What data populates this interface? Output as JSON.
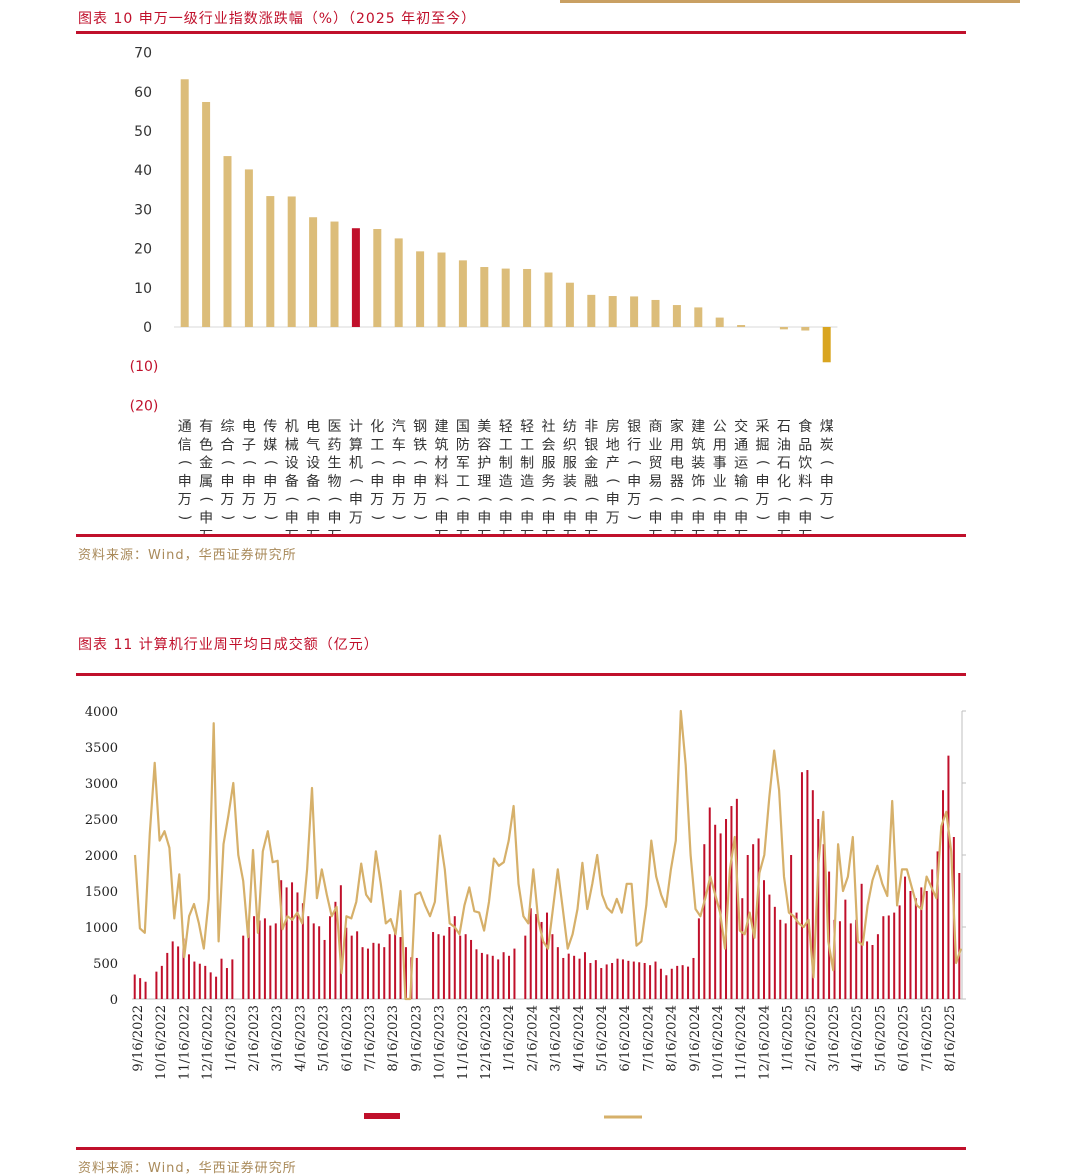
{
  "chart_data": [
    {
      "type": "bar",
      "title": "图表 10 申万一级行业指数涨跌幅（%）（2025 年初至今）",
      "source": "资料来源：Wind，华西证券研究所",
      "ylim": [
        -20,
        70
      ],
      "yticks": [
        "70",
        "60",
        "50",
        "40",
        "30",
        "20",
        "10",
        "0",
        "(10)",
        "(20)"
      ],
      "categories": [
        "通信(申万)",
        "有色金属(申万)",
        "综合(申万)",
        "电子(申万)",
        "传媒(申万)",
        "机械设备(申万)",
        "电气设备(申万)",
        "医药生物(申万)",
        "计算机(申万)",
        "化工(申万)",
        "汽车(申万)",
        "钢铁(申万)",
        "建筑材料(申万)",
        "国防军工(申万)",
        "美容护理(申万)",
        "轻工制造(申万)",
        "轻工制造(申万)",
        "社会服务(申万)",
        "纺织服装(申万)",
        "非银金融(申万)",
        "房地产(申万)",
        "银行(申万)",
        "商业贸易(申万)",
        "家用电器(申万)",
        "建筑装饰(申万)",
        "公用事业(申万)",
        "交通运输(申万)",
        "采掘(申万)",
        "石油石化(申万)",
        "食品饮料(申万)",
        "煤炭(申万)"
      ],
      "values": [
        63.2,
        57.4,
        43.6,
        40.2,
        33.4,
        33.3,
        28.0,
        26.9,
        25.2,
        25.0,
        22.6,
        19.3,
        19.0,
        17.0,
        15.3,
        14.9,
        14.8,
        13.9,
        11.3,
        8.2,
        7.9,
        7.8,
        6.9,
        5.6,
        5.0,
        2.4,
        0.5,
        0.0,
        -0.6,
        -0.9,
        -9.0
      ],
      "colors": {
        "default": "#dcbd7a",
        "highlight": "#c0102b",
        "negative": "#d9a520"
      },
      "highlight_index": 8
    },
    {
      "type": "bar+line",
      "title": "图表 11 计算机行业周平均日成交额（亿元）",
      "source": "资料来源：Wind，华西证券研究所",
      "ylim": [
        0,
        4000
      ],
      "yticks": [
        "4000",
        "3500",
        "3000",
        "2500",
        "2000",
        "1500",
        "1000",
        "500",
        "0"
      ],
      "x_tick_labels": [
        "9/16/2022",
        "10/16/2022",
        "11/16/2022",
        "12/16/2022",
        "1/16/2023",
        "2/16/2023",
        "3/16/2023",
        "4/16/2023",
        "5/16/2023",
        "6/16/2023",
        "7/16/2023",
        "8/16/2023",
        "9/16/2023",
        "10/16/2023",
        "11/16/2023",
        "12/16/2023",
        "1/16/2024",
        "2/16/2024",
        "3/16/2024",
        "4/16/2024",
        "5/16/2024",
        "6/16/2024",
        "7/16/2024",
        "8/16/2024",
        "9/16/2024",
        "10/16/2024",
        "11/16/2024",
        "12/16/2024",
        "1/16/2025",
        "2/16/2025",
        "3/16/2025",
        "4/16/2025",
        "5/16/2025",
        "6/16/2025",
        "7/16/2025",
        "8/16/2025"
      ],
      "series": [
        {
          "name": "",
          "kind": "bar",
          "color": "#c0102b",
          "values": [
            340,
            290,
            240,
            0,
            380,
            460,
            640,
            800,
            730,
            840,
            620,
            520,
            490,
            460,
            370,
            310,
            560,
            430,
            550,
            0,
            880,
            1050,
            1150,
            1090,
            1120,
            1020,
            1050,
            1650,
            1550,
            1620,
            1480,
            1330,
            1150,
            1050,
            1010,
            820,
            1150,
            1350,
            1580,
            990,
            880,
            940,
            720,
            700,
            780,
            770,
            720,
            900,
            940,
            860,
            720,
            580,
            570,
            0,
            0,
            930,
            900,
            880,
            1000,
            1150,
            880,
            900,
            820,
            690,
            640,
            620,
            600,
            550,
            650,
            600,
            700,
            0,
            880,
            1260,
            1180,
            1070,
            1200,
            900,
            720,
            570,
            630,
            600,
            560,
            650,
            500,
            540,
            430,
            480,
            500,
            560,
            550,
            530,
            520,
            510,
            500,
            470,
            520,
            420,
            330,
            420,
            460,
            470,
            450,
            570,
            1120,
            2150,
            2660,
            2420,
            2300,
            2500,
            2680,
            2780,
            1400,
            2000,
            2150,
            2230,
            1650,
            1450,
            1280,
            1100,
            1050,
            2000,
            1200,
            3150,
            3180,
            2900,
            2500,
            2150,
            1770,
            1100,
            1080,
            1380,
            1050,
            1100,
            1600,
            800,
            750,
            900,
            1150,
            1160,
            1200,
            1300,
            1700,
            1500,
            1400,
            1550,
            1500,
            1800,
            2050,
            2900,
            3380,
            2250,
            1750
          ]
        },
        {
          "name": "",
          "kind": "line",
          "color": "#d6b06a",
          "values": [
            2000,
            980,
            920,
            2300,
            3280,
            2200,
            2330,
            2100,
            1120,
            1730,
            580,
            1150,
            1320,
            1050,
            700,
            1390,
            3830,
            800,
            2150,
            2550,
            3000,
            2000,
            1640,
            860,
            2070,
            920,
            2050,
            2330,
            1900,
            1920,
            970,
            1150,
            1100,
            1200,
            1050,
            1800,
            2930,
            1400,
            1800,
            1450,
            1150,
            1280,
            360,
            1150,
            1120,
            1350,
            1880,
            1450,
            1350,
            2050,
            1600,
            1050,
            1110,
            900,
            1500,
            0,
            0,
            1450,
            1480,
            1300,
            1150,
            1350,
            2270,
            1800,
            1050,
            1000,
            900,
            1300,
            1550,
            1220,
            1200,
            950,
            1350,
            1950,
            1850,
            1900,
            2200,
            2680,
            1600,
            1150,
            1050,
            1800,
            1100,
            800,
            700,
            1250,
            1800,
            1250,
            700,
            900,
            1250,
            1890,
            1250,
            1600,
            2000,
            1450,
            1270,
            1200,
            1390,
            1200,
            1600,
            1600,
            740,
            800,
            1300,
            2200,
            1700,
            1450,
            1280,
            1800,
            2200,
            4000,
            3250,
            2000,
            1250,
            1150,
            1400,
            1700,
            1450,
            1200,
            700,
            1800,
            2250,
            950,
            900,
            1200,
            850,
            1750,
            2000,
            2800,
            3450,
            2900,
            1700,
            1200,
            1150,
            1050,
            1000,
            1100,
            300,
            1880,
            2600,
            800,
            400,
            2150,
            1500,
            1700,
            2250,
            800,
            750,
            1300,
            1650,
            1850,
            1600,
            1430,
            2750,
            1300,
            1800,
            1800,
            1550,
            1300,
            1250,
            1700,
            1550,
            1400,
            2400,
            2600,
            2050,
            500,
            700
          ]
        }
      ]
    }
  ]
}
